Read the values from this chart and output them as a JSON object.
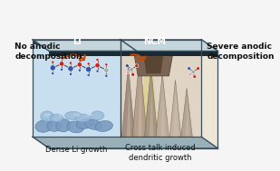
{
  "fig_width": 3.09,
  "fig_height": 1.89,
  "dpi": 100,
  "bg_color": "#f5f5f5",
  "left_panel_color": "#c8dff0",
  "right_panel_color": "#e0d5c5",
  "right_side_color": "#ede5d5",
  "top_plate_color": "#b8ccd0",
  "top_plate_shadow": "#8fa8b0",
  "bottom_plate_color": "#9ab0b8",
  "separator_color": "#2a3a44",
  "left_label": "Li",
  "right_label": "NCM",
  "text_no_anodic": "No anodic\ndecomposition",
  "text_severe": "Severe anodic\ndecomposition",
  "text_dense": "Dense Li growth",
  "text_crosstalk": "Cross talk induced\ndendritic growth",
  "arrow_color": "#c84800",
  "molecule_blue": "#3355aa",
  "molecule_red": "#cc2222",
  "molecule_gray": "#aaaaaa",
  "molecule_pink": "#dd88aa"
}
